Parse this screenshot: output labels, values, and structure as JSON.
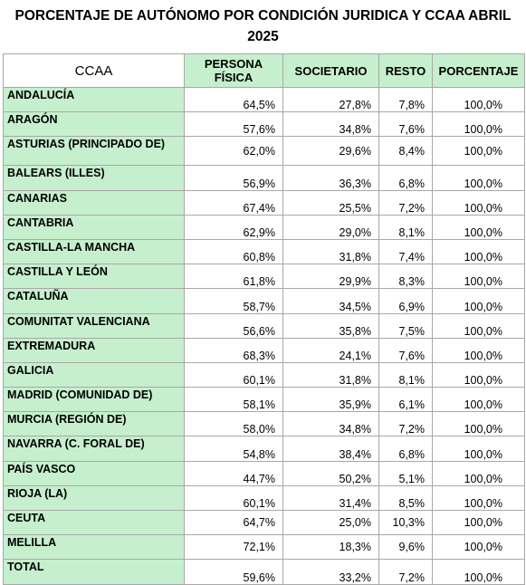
{
  "title_line1": "PORCENTAJE DE AUTÓNOMO POR CONDICIÓN JURIDICA Y CCAA ABRIL",
  "title_line2": "2025",
  "headers": {
    "ccaa": "CCAA",
    "persona_fisica": "PERSONA FÍSICA",
    "societario": "SOCIETARIO",
    "resto": "RESTO",
    "porcentaje": "PORCENTAJE"
  },
  "rows": [
    {
      "ccaa": "ANDALUCÍA",
      "persona_fisica": "64,5%",
      "societario": "27,8%",
      "resto": "7,8%",
      "porcentaje": "100,0%"
    },
    {
      "ccaa": "ARAGÓN",
      "persona_fisica": "57,6%",
      "societario": "34,8%",
      "resto": "7,6%",
      "porcentaje": "100,0%"
    },
    {
      "ccaa": "ASTURIAS (PRINCIPADO DE)",
      "persona_fisica": "62,0%",
      "societario": "29,6%",
      "resto": "8,4%",
      "porcentaje": "100,0%"
    },
    {
      "ccaa": "BALEARS (ILLES)",
      "persona_fisica": "56,9%",
      "societario": "36,3%",
      "resto": "6,8%",
      "porcentaje": "100,0%"
    },
    {
      "ccaa": "CANARIAS",
      "persona_fisica": "67,4%",
      "societario": "25,5%",
      "resto": "7,2%",
      "porcentaje": "100,0%"
    },
    {
      "ccaa": "CANTABRIA",
      "persona_fisica": "62,9%",
      "societario": "29,0%",
      "resto": "8,1%",
      "porcentaje": "100,0%"
    },
    {
      "ccaa": "CASTILLA-LA MANCHA",
      "persona_fisica": "60,8%",
      "societario": "31,8%",
      "resto": "7,4%",
      "porcentaje": "100,0%"
    },
    {
      "ccaa": "CASTILLA Y LEÓN",
      "persona_fisica": "61,8%",
      "societario": "29,9%",
      "resto": "8,3%",
      "porcentaje": "100,0%"
    },
    {
      "ccaa": "CATALUÑA",
      "persona_fisica": "58,7%",
      "societario": "34,5%",
      "resto": "6,9%",
      "porcentaje": "100,0%"
    },
    {
      "ccaa": "COMUNITAT VALENCIANA",
      "persona_fisica": "56,6%",
      "societario": "35,8%",
      "resto": "7,5%",
      "porcentaje": "100,0%"
    },
    {
      "ccaa": "EXTREMADURA",
      "persona_fisica": "68,3%",
      "societario": "24,1%",
      "resto": "7,6%",
      "porcentaje": "100,0%"
    },
    {
      "ccaa": "GALICIA",
      "persona_fisica": "60,1%",
      "societario": "31,8%",
      "resto": "8,1%",
      "porcentaje": "100,0%"
    },
    {
      "ccaa": "MADRID (COMUNIDAD DE)",
      "persona_fisica": "58,1%",
      "societario": "35,9%",
      "resto": "6,1%",
      "porcentaje": "100,0%"
    },
    {
      "ccaa": "MURCIA (REGIÓN DE)",
      "persona_fisica": "58,0%",
      "societario": "34,8%",
      "resto": "7,2%",
      "porcentaje": "100,0%"
    },
    {
      "ccaa": "NAVARRA (C. FORAL DE)",
      "persona_fisica": "54,8%",
      "societario": "38,4%",
      "resto": "6,8%",
      "porcentaje": "100,0%"
    },
    {
      "ccaa": "PAÍS VASCO",
      "persona_fisica": "44,7%",
      "societario": "50,2%",
      "resto": "5,1%",
      "porcentaje": "100,0%"
    },
    {
      "ccaa": "RIOJA (LA)",
      "persona_fisica": "60,1%",
      "societario": "31,4%",
      "resto": "8,5%",
      "porcentaje": "100,0%"
    },
    {
      "ccaa": "CEUTA",
      "persona_fisica": "64,7%",
      "societario": "25,0%",
      "resto": "10,3%",
      "porcentaje": "100,0%"
    },
    {
      "ccaa": "MELILLA",
      "persona_fisica": "72,1%",
      "societario": "18,3%",
      "resto": "9,6%",
      "porcentaje": "100,0%"
    },
    {
      "ccaa": "TOTAL",
      "persona_fisica": "59,6%",
      "societario": "33,2%",
      "resto": "7,2%",
      "porcentaje": "100,0%"
    }
  ],
  "colors": {
    "header_green": "#c6efce",
    "border": "#a8a8a8"
  }
}
